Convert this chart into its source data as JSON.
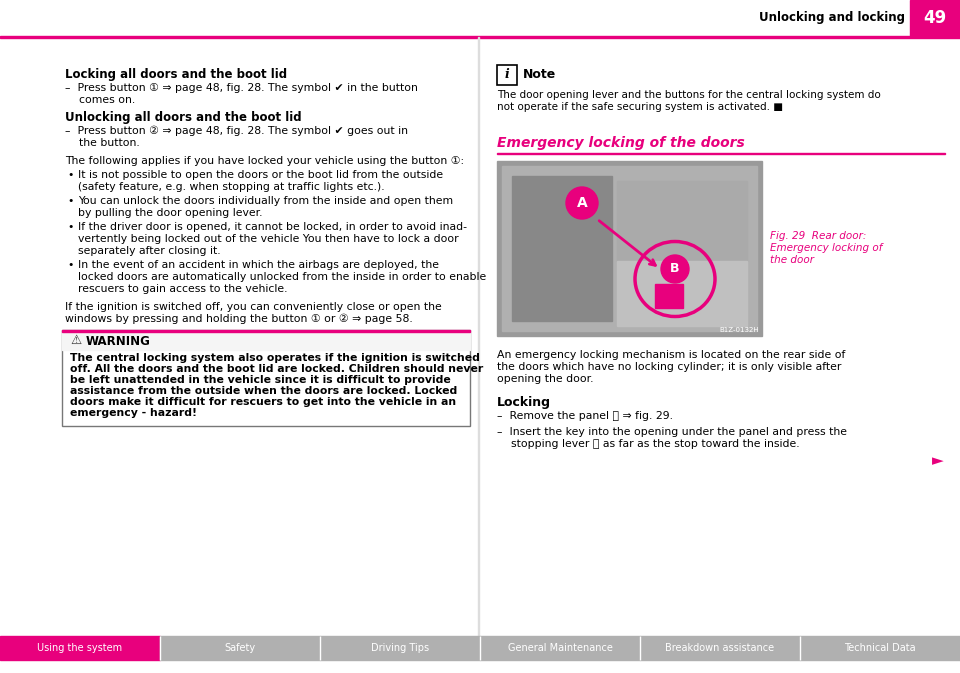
{
  "page_title": "Unlocking and locking",
  "page_number": "49",
  "pink": "#e8007d",
  "black": "#000000",
  "white": "#ffffff",
  "light_gray": "#cccccc",
  "med_gray": "#999999",
  "dark_gray": "#555555",
  "bg_color": "#ffffff",
  "footer_active_color": "#e8007d",
  "footer_inactive_color": "#b0b0b0",
  "section_left": {
    "heading1": "Locking all doors and the boot lid",
    "para1_line1": "–  Press button ① ⇒ page 48, fig. 28. The symbol ✔ in the button",
    "para1_line2": "    comes on.",
    "heading2": "Unlocking all doors and the boot lid",
    "para2_line1": "–  Press button ② ⇒ page 48, fig. 28. The symbol ✔ goes out in",
    "para2_line2": "    the button.",
    "note1": "The following applies if you have locked your vehicle using the button ①:",
    "bullets": [
      [
        "It is not possible to open the doors or the boot lid from the outside",
        "(safety feature, e.g. when stopping at traffic lights etc.)."
      ],
      [
        "You can unlock the doors individually from the inside and open them",
        "by pulling the door opening lever."
      ],
      [
        "If the driver door is opened, it cannot be locked, in order to avoid inad-",
        "vertently being locked out of the vehicle You then have to lock a door",
        "separately after closing it."
      ],
      [
        "In the event of an accident in which the airbags are deployed, the",
        "locked doors are automatically unlocked from the inside in order to enable",
        "rescuers to gain access to the vehicle."
      ]
    ],
    "note2_line1": "If the ignition is switched off, you can conveniently close or open the",
    "note2_line2": "windows by pressing and holding the button ① or ② ⇒ page 58.",
    "warning_title": "WARNING",
    "warning_lines": [
      "The central locking system also operates if the ignition is switched",
      "off. All the doors and the boot lid are locked. Children should never",
      "be left unattended in the vehicle since it is difficult to provide",
      "assistance from the outside when the doors are locked. Locked",
      "doors make it difficult for rescuers to get into the vehicle in an",
      "emergency - hazard!"
    ]
  },
  "section_right": {
    "note_title": "Note",
    "note_lines": [
      "The door opening lever and the buttons for the central locking system do",
      "not operate if the safe securing system is activated. ■"
    ],
    "section_heading": "Emergency locking of the doors",
    "fig_caption_lines": [
      "Fig. 29  Rear door:",
      "Emergency locking of",
      "the door"
    ],
    "emerg_lines": [
      "An emergency locking mechanism is located on the rear side of",
      "the doors which have no locking cylinder; it is only visible after",
      "opening the door."
    ],
    "locking_heading": "Locking",
    "locking_line1": "–  Remove the panel Ⓐ ⇒ fig. 29.",
    "locking_line2": "–  Insert the key into the opening under the panel and press the",
    "locking_line3": "    stopping lever Ⓑ as far as the stop toward the inside."
  },
  "footer_tabs": [
    "Using the system",
    "Safety",
    "Driving Tips",
    "General Maintenance",
    "Breakdown assistance",
    "Technical Data"
  ]
}
